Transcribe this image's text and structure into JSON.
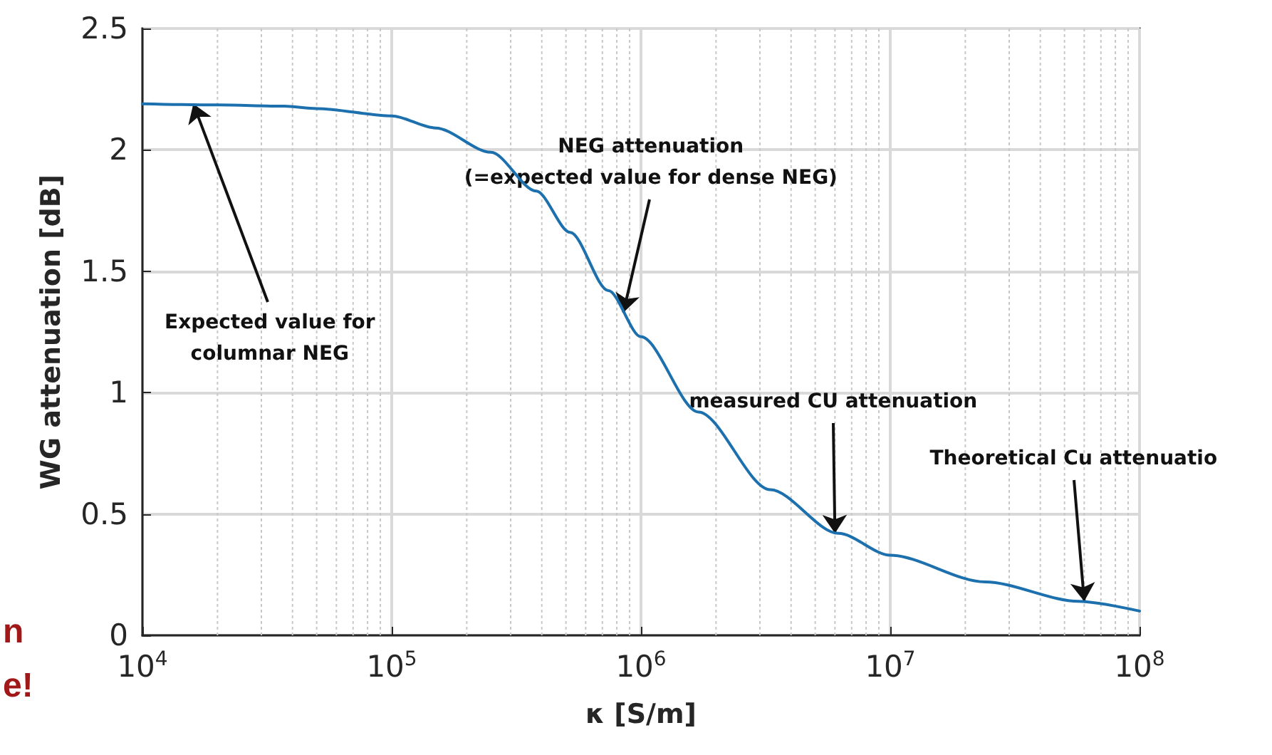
{
  "chart_data": {
    "type": "line",
    "xlabel": "κ [S/m]",
    "ylabel": "WG attenuation [dB]",
    "x": [
      10000,
      20000,
      37000,
      50000,
      100000,
      150000,
      250000,
      380000,
      520000,
      740000,
      1000000,
      1700000,
      3300000,
      6200000,
      10000000,
      24000000,
      57000000,
      100000000
    ],
    "series": [
      {
        "color": "#1c70ad",
        "values": [
          2.19,
          2.185,
          2.18,
          2.17,
          2.14,
          2.09,
          1.99,
          1.83,
          1.66,
          1.42,
          1.23,
          0.92,
          0.6,
          0.42,
          0.33,
          0.22,
          0.14,
          0.1
        ]
      }
    ],
    "log": "x",
    "xlim": [
      10000,
      100000000
    ],
    "xticks": [
      {
        "value": 10000,
        "label": "10$^{4}$"
      },
      {
        "value": 100000,
        "label": "10$^{5}$"
      },
      {
        "value": 1000000,
        "label": "10$^{6}$"
      },
      {
        "value": 10000000,
        "label": "10$^{7}$"
      },
      {
        "value": 100000000,
        "label": "10$^{8}$"
      }
    ],
    "ylim": [
      0,
      2.5
    ],
    "yticks": [
      0,
      0.5,
      1,
      1.5,
      2,
      2.5
    ],
    "grid": true,
    "marker": "none",
    "line_style": "solid",
    "annotations": [
      {
        "text": "Expected value for\ncolumnar NEG",
        "x": 16000,
        "y": 2.19
      },
      {
        "text": "NEG attenuation\n(=expected value for dense NEG)",
        "x": 850000,
        "y": 1.33
      },
      {
        "text": "measured CU attenuation",
        "x": 6000000,
        "y": 0.42
      },
      {
        "text": "Theoretical Cu attenuatio",
        "x": 60000000,
        "y": 0.14
      },
      "n",
      "e!"
    ]
  }
}
